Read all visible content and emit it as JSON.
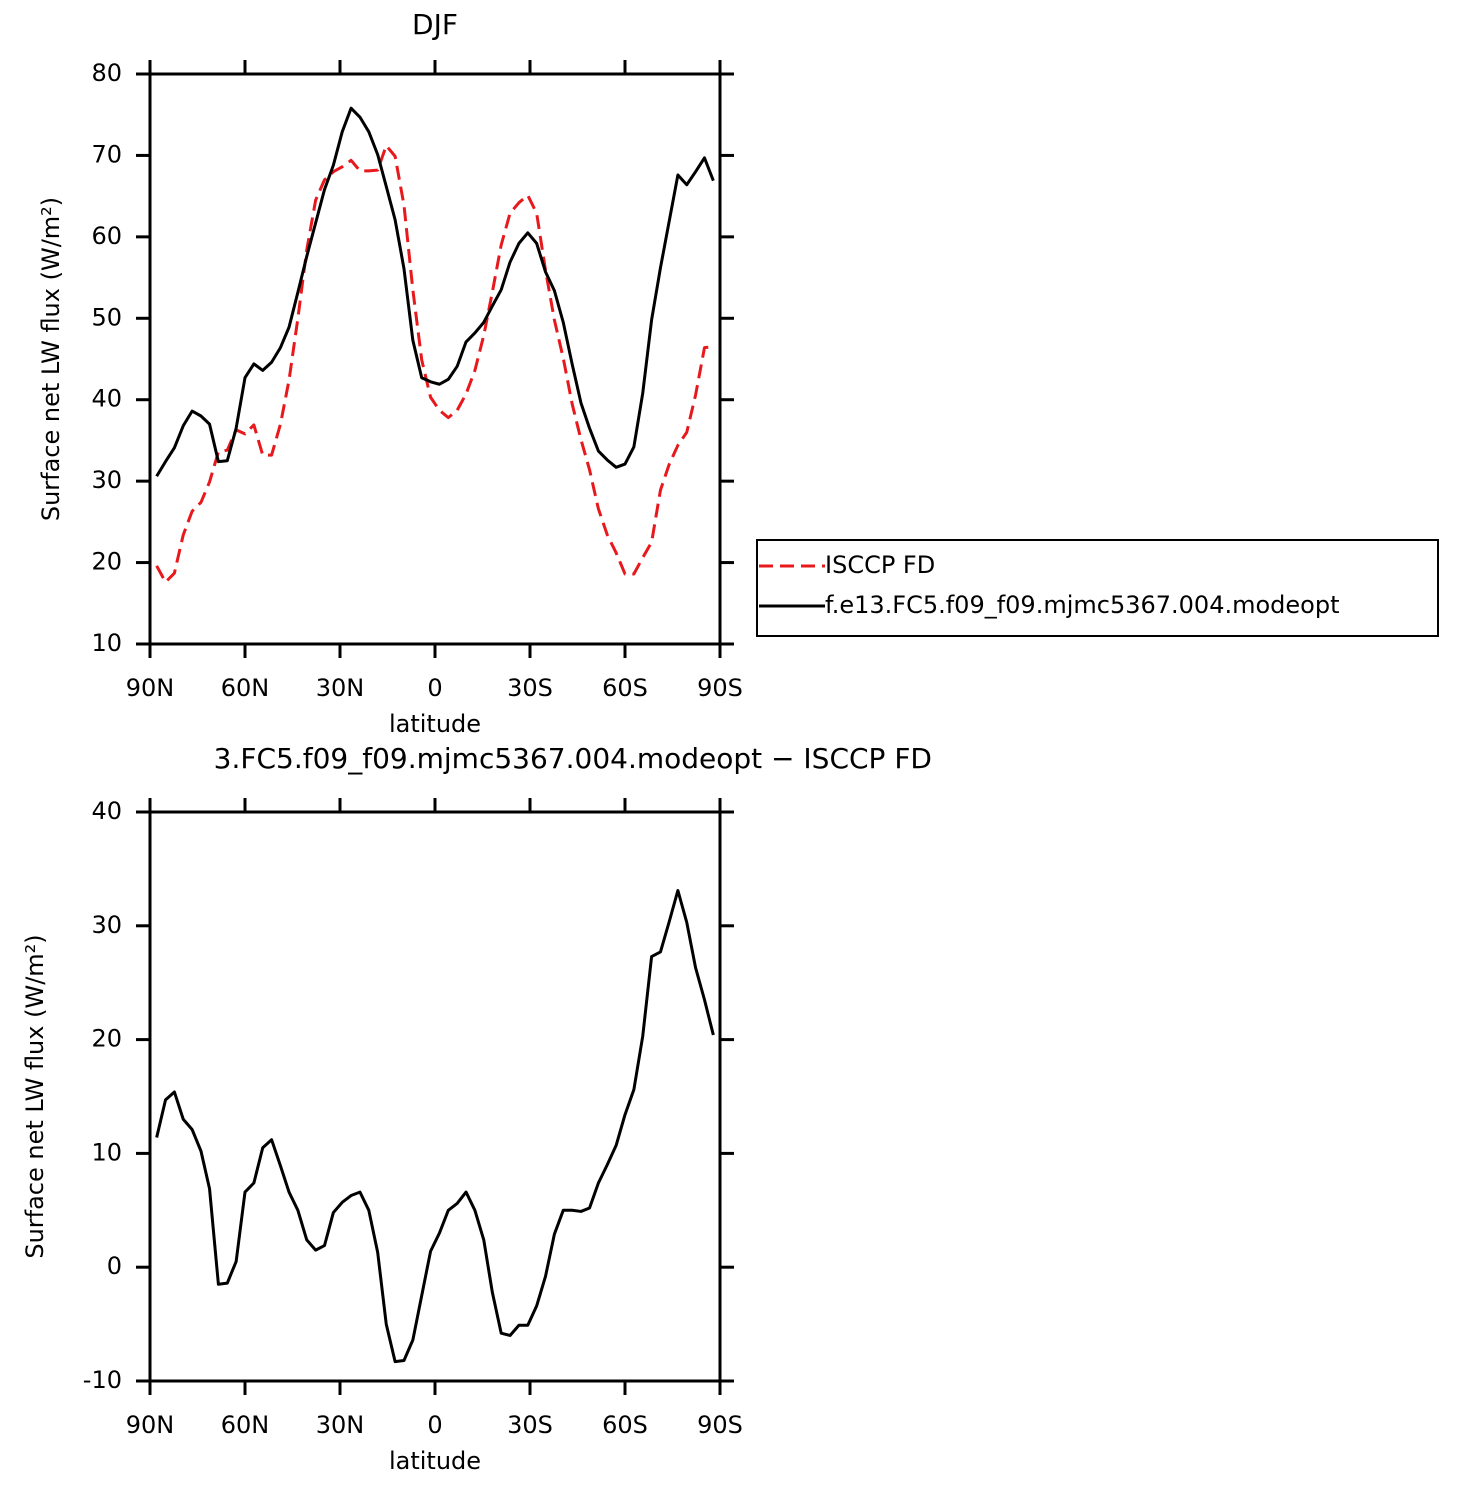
{
  "chart_data": [
    {
      "type": "line",
      "title": "DJF",
      "xlabel": "latitude",
      "ylabel": "Surface net LW flux (W/m²)",
      "x": [
        87.9,
        85.1,
        82.3,
        79.5,
        76.7,
        73.9,
        71.2,
        68.4,
        65.6,
        62.8,
        60.0,
        57.2,
        54.4,
        51.6,
        48.8,
        46.1,
        43.3,
        40.5,
        37.7,
        34.9,
        32.1,
        29.3,
        26.5,
        23.7,
        20.9,
        18.1,
        15.4,
        12.6,
        9.8,
        7.0,
        4.2,
        1.4,
        -1.4,
        -4.2,
        -7.0,
        -9.8,
        -12.6,
        -15.4,
        -18.1,
        -20.9,
        -23.7,
        -26.5,
        -29.3,
        -32.1,
        -34.9,
        -37.7,
        -40.5,
        -43.3,
        -46.1,
        -48.8,
        -51.6,
        -54.4,
        -57.2,
        -60.0,
        -62.8,
        -65.6,
        -68.4,
        -71.2,
        -73.9,
        -76.7,
        -79.5,
        -82.3,
        -85.1,
        -87.9
      ],
      "series": [
        {
          "name": "ISCCP FD",
          "color": "#e8191c",
          "dash": "dashed",
          "values": [
            19.6,
            17.6,
            18.7,
            23.4,
            26.3,
            27.4,
            29.9,
            33.6,
            33.8,
            36.3,
            35.8,
            36.9,
            33.2,
            33.2,
            37.0,
            42.4,
            50.0,
            58.4,
            64.5,
            67.0,
            68.0,
            68.6,
            69.4,
            68.1,
            68.1,
            68.2,
            71.2,
            69.9,
            63.9,
            53.5,
            44.9,
            40.3,
            38.7,
            37.8,
            38.7,
            40.7,
            43.6,
            47.9,
            53.2,
            59.0,
            62.9,
            64.2,
            65.1,
            62.9,
            55.9,
            49.8,
            45.1,
            39.5,
            35.1,
            31.4,
            26.6,
            23.4,
            21.2,
            18.6,
            18.6,
            20.6,
            22.5,
            28.9,
            32.0,
            34.4,
            36.0,
            40.6,
            46.4,
            46.5
          ]
        },
        {
          "name": "f.e13.FC5.f09_f09.mjmc5367.004.modeopt",
          "color": "#000000",
          "dash": "solid",
          "values": [
            30.6,
            32.4,
            34.1,
            36.8,
            38.6,
            38.0,
            37.0,
            32.4,
            32.5,
            36.5,
            42.7,
            44.4,
            43.6,
            44.6,
            46.4,
            48.9,
            53.2,
            57.6,
            61.7,
            65.8,
            68.8,
            72.9,
            75.8,
            74.7,
            72.9,
            70.1,
            66.2,
            62.1,
            56.1,
            47.3,
            42.7,
            42.2,
            41.9,
            42.5,
            44.1,
            47.1,
            48.2,
            49.5,
            51.5,
            53.5,
            56.9,
            59.2,
            60.5,
            59.2,
            55.7,
            53.4,
            49.5,
            44.4,
            39.6,
            36.5,
            33.7,
            32.6,
            31.7,
            32.1,
            34.2,
            40.8,
            49.8,
            56.2,
            61.8,
            67.6,
            66.4,
            68.0,
            69.7,
            66.9
          ]
        }
      ],
      "xlim": [
        90,
        -90
      ],
      "xticks": [
        {
          "value": 90,
          "label": "90N"
        },
        {
          "value": 60,
          "label": "60N"
        },
        {
          "value": 30,
          "label": "30N"
        },
        0,
        {
          "value": -30,
          "label": "30S"
        },
        {
          "value": -60,
          "label": "60S"
        },
        {
          "value": -90,
          "label": "90S"
        }
      ],
      "ylim": [
        10,
        80
      ],
      "yticks": [
        10,
        20,
        30,
        40,
        50,
        60,
        70,
        80
      ],
      "legend": "right"
    },
    {
      "type": "line",
      "title": "3.FC5.f09_f09.mjmc5367.004.modeopt − ISCCP FD",
      "xlabel": "latitude",
      "ylabel": "Surface net LW flux (W/m²)",
      "x": [
        87.9,
        85.1,
        82.3,
        79.5,
        76.7,
        73.9,
        71.2,
        68.4,
        65.6,
        62.8,
        60.0,
        57.2,
        54.4,
        51.6,
        48.8,
        46.1,
        43.3,
        40.5,
        37.7,
        34.9,
        32.1,
        29.3,
        26.5,
        23.7,
        20.9,
        18.1,
        15.4,
        12.6,
        9.8,
        7.0,
        4.2,
        1.4,
        -1.4,
        -4.2,
        -7.0,
        -9.8,
        -12.6,
        -15.4,
        -18.1,
        -20.9,
        -23.7,
        -26.5,
        -29.3,
        -32.1,
        -34.9,
        -37.7,
        -40.5,
        -43.3,
        -46.1,
        -48.8,
        -51.6,
        -54.4,
        -57.2,
        -60.0,
        -62.8,
        -65.6,
        -68.4,
        -71.2,
        -73.9,
        -76.7,
        -79.5,
        -82.3,
        -85.1,
        -87.9
      ],
      "color": "#000000",
      "values": [
        11.4,
        14.7,
        15.4,
        13.0,
        12.1,
        10.2,
        6.9,
        -1.5,
        -1.4,
        0.5,
        6.6,
        7.4,
        10.5,
        11.2,
        8.9,
        6.6,
        5.0,
        2.4,
        1.5,
        1.9,
        4.8,
        5.7,
        6.3,
        6.6,
        5.0,
        1.3,
        -5.0,
        -8.3,
        -8.2,
        -6.4,
        -2.5,
        1.4,
        3.0,
        5.0,
        5.6,
        6.6,
        5.0,
        2.4,
        -2.2,
        -5.8,
        -6.0,
        -5.1,
        -5.1,
        -3.4,
        -0.8,
        2.9,
        5.0,
        5.0,
        4.9,
        5.2,
        7.4,
        9.0,
        10.7,
        13.4,
        15.6,
        20.3,
        27.3,
        27.7,
        30.3,
        33.1,
        30.3,
        26.3,
        23.5,
        20.4
      ],
      "xlim": [
        90,
        -90
      ],
      "xticks": [
        {
          "value": 90,
          "label": "90N"
        },
        {
          "value": 60,
          "label": "60N"
        },
        {
          "value": 30,
          "label": "30N"
        },
        0,
        {
          "value": -30,
          "label": "30S"
        },
        {
          "value": -60,
          "label": "60S"
        },
        {
          "value": -90,
          "label": "90S"
        }
      ],
      "ylim": [
        -10,
        40
      ],
      "yticks": [
        -10,
        0,
        10,
        20,
        30,
        40
      ]
    }
  ]
}
